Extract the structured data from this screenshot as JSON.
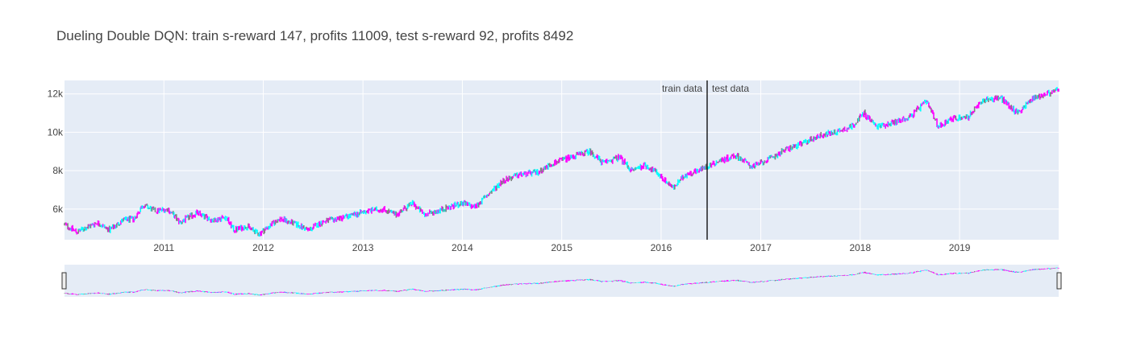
{
  "chart_data": {
    "type": "candlestick",
    "title": "Dueling Double DQN: train s-reward 147, profits 11009, test s-reward 92, profits 8492",
    "xlabel": "",
    "ylabel": "",
    "x_range": [
      "2010-01-01",
      "2019-12-31"
    ],
    "ylim": [
      4400,
      12700
    ],
    "x_tick_labels": [
      "2011",
      "2012",
      "2013",
      "2014",
      "2015",
      "2016",
      "2017",
      "2018",
      "2019"
    ],
    "y_tick_labels": [
      "6k",
      "8k",
      "10k",
      "12k"
    ],
    "y_tick_values": [
      6000,
      8000,
      10000,
      12000
    ],
    "grid": true,
    "legend": "none",
    "split": {
      "date": "2016-06-15",
      "left_label": "train data",
      "right_label": "test data"
    },
    "colors": {
      "rise": "#ff00ff",
      "fall": "#00ffff",
      "hold": "#808080",
      "plot_bg": "#e5ecf6",
      "grid": "#ffffff",
      "split_line": "#000000"
    },
    "series": [
      {
        "values_approx": [
          [
            "2010-01-01",
            5200
          ],
          [
            "2010-02-15",
            4800
          ],
          [
            "2010-04-01",
            5100
          ],
          [
            "2010-05-01",
            5300
          ],
          [
            "2010-06-15",
            4900
          ],
          [
            "2010-08-01",
            5400
          ],
          [
            "2010-09-15",
            5500
          ],
          [
            "2010-10-15",
            6200
          ],
          [
            "2010-12-01",
            5900
          ],
          [
            "2011-01-15",
            6000
          ],
          [
            "2011-03-01",
            5300
          ],
          [
            "2011-05-01",
            5800
          ],
          [
            "2011-07-01",
            5400
          ],
          [
            "2011-08-15",
            5600
          ],
          [
            "2011-09-15",
            4900
          ],
          [
            "2011-11-01",
            5100
          ],
          [
            "2011-12-15",
            4700
          ],
          [
            "2012-03-01",
            5500
          ],
          [
            "2012-05-01",
            5200
          ],
          [
            "2012-06-15",
            4900
          ],
          [
            "2012-08-01",
            5300
          ],
          [
            "2012-10-01",
            5500
          ],
          [
            "2012-12-01",
            5700
          ],
          [
            "2013-01-15",
            5900
          ],
          [
            "2013-03-15",
            6000
          ],
          [
            "2013-05-01",
            5700
          ],
          [
            "2013-07-01",
            6300
          ],
          [
            "2013-08-15",
            5700
          ],
          [
            "2013-10-01",
            5900
          ],
          [
            "2013-11-15",
            6100
          ],
          [
            "2014-01-01",
            6300
          ],
          [
            "2014-02-15",
            6100
          ],
          [
            "2014-04-01",
            6700
          ],
          [
            "2014-06-01",
            7500
          ],
          [
            "2014-08-01",
            7800
          ],
          [
            "2014-10-01",
            7900
          ],
          [
            "2014-12-01",
            8400
          ],
          [
            "2015-02-01",
            8700
          ],
          [
            "2015-04-15",
            9000
          ],
          [
            "2015-06-01",
            8400
          ],
          [
            "2015-08-01",
            8700
          ],
          [
            "2015-09-15",
            8000
          ],
          [
            "2015-11-01",
            8300
          ],
          [
            "2015-12-15",
            7900
          ],
          [
            "2016-02-15",
            7100
          ],
          [
            "2016-04-01",
            7800
          ],
          [
            "2016-06-01",
            8100
          ],
          [
            "2016-08-01",
            8500
          ],
          [
            "2016-10-01",
            8800
          ],
          [
            "2016-12-01",
            8200
          ],
          [
            "2017-02-01",
            8600
          ],
          [
            "2017-04-01",
            9100
          ],
          [
            "2017-06-01",
            9400
          ],
          [
            "2017-08-01",
            9800
          ],
          [
            "2017-10-01",
            10000
          ],
          [
            "2017-12-01",
            10300
          ],
          [
            "2018-01-15",
            11000
          ],
          [
            "2018-03-01",
            10300
          ],
          [
            "2018-05-01",
            10500
          ],
          [
            "2018-07-01",
            10800
          ],
          [
            "2018-09-01",
            11600
          ],
          [
            "2018-10-15",
            10300
          ],
          [
            "2018-12-01",
            10700
          ],
          [
            "2019-02-01",
            10800
          ],
          [
            "2019-04-01",
            11700
          ],
          [
            "2019-06-01",
            11800
          ],
          [
            "2019-08-01",
            11000
          ],
          [
            "2019-10-01",
            11800
          ],
          [
            "2019-12-31",
            12200
          ]
        ]
      }
    ]
  }
}
